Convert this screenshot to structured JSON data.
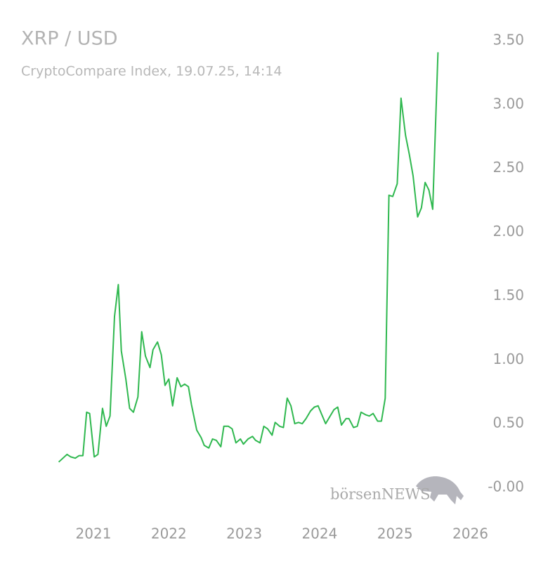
{
  "chart_data": {
    "type": "line",
    "title": "XRP / USD",
    "subtitle": "CryptoCompare Index, 19.07.25, 14:14",
    "watermark": "börsenNEWS",
    "x": [
      2020.54,
      2020.65,
      2020.7,
      2020.76,
      2020.81,
      2020.86,
      2020.91,
      2020.95,
      2021.01,
      2021.06,
      2021.12,
      2021.17,
      2021.22,
      2021.28,
      2021.33,
      2021.37,
      2021.43,
      2021.48,
      2021.53,
      2021.59,
      2021.64,
      2021.69,
      2021.75,
      2021.79,
      2021.85,
      2021.9,
      2021.95,
      2022.0,
      2022.05,
      2022.11,
      2022.16,
      2022.21,
      2022.26,
      2022.3,
      2022.37,
      2022.43,
      2022.47,
      2022.53,
      2022.58,
      2022.63,
      2022.69,
      2022.73,
      2022.79,
      2022.84,
      2022.89,
      2022.95,
      2022.99,
      2023.05,
      2023.11,
      2023.15,
      2023.21,
      2023.26,
      2023.31,
      2023.37,
      2023.41,
      2023.47,
      2023.52,
      2023.57,
      2023.62,
      2023.67,
      2023.72,
      2023.77,
      2023.82,
      2023.88,
      2023.93,
      2023.98,
      2024.03,
      2024.08,
      2024.13,
      2024.19,
      2024.24,
      2024.29,
      2024.35,
      2024.39,
      2024.45,
      2024.5,
      2024.55,
      2024.61,
      2024.66,
      2024.71,
      2024.77,
      2024.82,
      2024.87,
      2024.92,
      2024.97,
      2025.03,
      2025.08,
      2025.14,
      2025.19,
      2025.24,
      2025.3,
      2025.35,
      2025.4,
      2025.45,
      2025.5,
      2025.57
    ],
    "series": [
      {
        "name": "XRP / USD",
        "color": "#2fb84f",
        "values": [
          0.2,
          0.26,
          0.24,
          0.23,
          0.25,
          0.25,
          0.59,
          0.58,
          0.24,
          0.26,
          0.62,
          0.48,
          0.56,
          1.34,
          1.59,
          1.07,
          0.85,
          0.62,
          0.59,
          0.71,
          1.22,
          1.03,
          0.94,
          1.08,
          1.14,
          1.04,
          0.8,
          0.85,
          0.64,
          0.86,
          0.79,
          0.81,
          0.79,
          0.65,
          0.45,
          0.39,
          0.33,
          0.31,
          0.38,
          0.37,
          0.32,
          0.48,
          0.48,
          0.46,
          0.35,
          0.38,
          0.34,
          0.38,
          0.4,
          0.37,
          0.35,
          0.48,
          0.46,
          0.41,
          0.51,
          0.48,
          0.47,
          0.7,
          0.64,
          0.5,
          0.51,
          0.5,
          0.54,
          0.6,
          0.63,
          0.64,
          0.57,
          0.5,
          0.55,
          0.61,
          0.63,
          0.49,
          0.54,
          0.54,
          0.47,
          0.48,
          0.59,
          0.57,
          0.56,
          0.58,
          0.52,
          0.52,
          0.7,
          2.29,
          2.28,
          2.38,
          3.05,
          2.76,
          2.61,
          2.44,
          2.12,
          2.19,
          2.39,
          2.33,
          2.18,
          3.41
        ]
      }
    ],
    "xlim": [
      2020,
      2026
    ],
    "xticks": [
      2021,
      2022,
      2023,
      2024,
      2025,
      2026
    ],
    "ylim": [
      0,
      3.5
    ],
    "yticks": [
      {
        "value": 0,
        "label": "-0.00"
      },
      {
        "value": 0.5,
        "label": "0.50"
      },
      {
        "value": 1,
        "label": "1.00"
      },
      {
        "value": 1.5,
        "label": "1.50"
      },
      {
        "value": 2,
        "label": "2.00"
      },
      {
        "value": 2.5,
        "label": "2.50"
      },
      {
        "value": 3,
        "label": "3.00"
      },
      {
        "value": 3.5,
        "label": "3.50"
      }
    ],
    "grid": false
  }
}
